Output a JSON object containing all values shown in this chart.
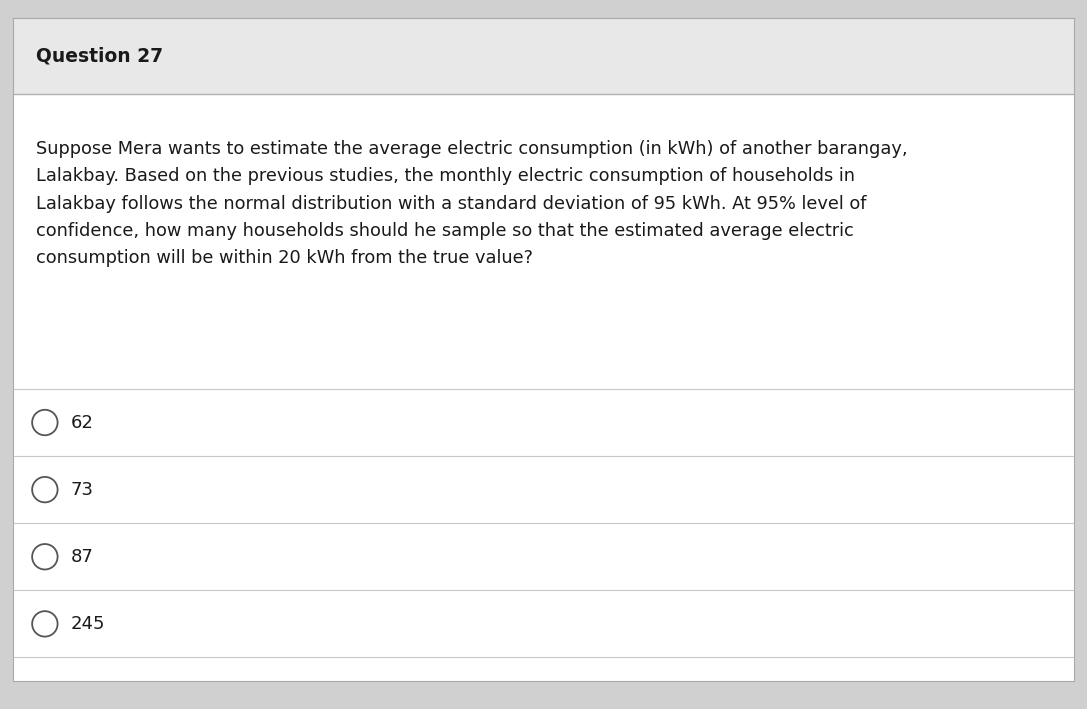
{
  "title": "Question 27",
  "question_text": "Suppose Mera wants to estimate the average electric consumption (in kWh) of another barangay,\nLalakbay. Based on the previous studies, the monthly electric consumption of households in\nLalakbay follows the normal distribution with a standard deviation of 95 kWh. At 95% level of\nconfidence, how many households should he sample so that the estimated average electric\nconsumption will be within 20 kWh from the true value?",
  "options": [
    "62",
    "73",
    "87",
    "245"
  ],
  "bg_color": "#ffffff",
  "header_bg": "#e8e8e8",
  "card_border": "#aaaaaa",
  "separator_color": "#b0b0b0",
  "option_line_color": "#c8c8c8",
  "title_color": "#1a1a1a",
  "text_color": "#1a1a1a",
  "option_color": "#1a1a1a",
  "circle_color": "#555555",
  "title_fontsize": 13.5,
  "question_fontsize": 12.8,
  "option_fontsize": 13.0
}
